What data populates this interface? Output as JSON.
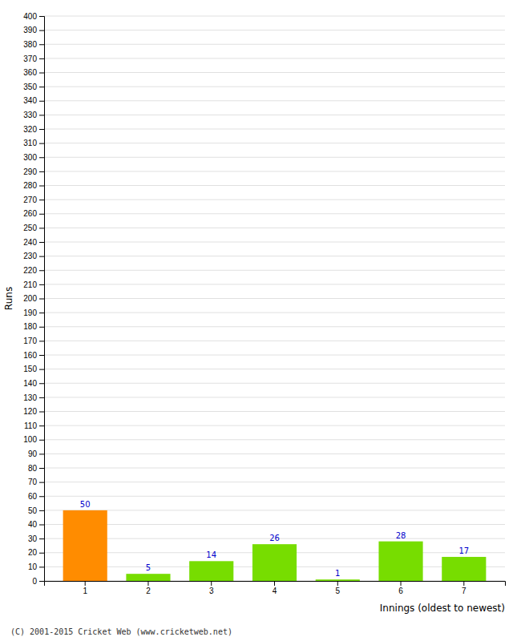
{
  "chart_data": {
    "type": "bar",
    "categories": [
      "1",
      "2",
      "3",
      "4",
      "5",
      "6",
      "7"
    ],
    "values": [
      50,
      5,
      14,
      26,
      1,
      28,
      17
    ],
    "colors": [
      "#FF8C00",
      "#77DD00",
      "#77DD00",
      "#77DD00",
      "#77DD00",
      "#77DD00",
      "#77DD00"
    ],
    "xlabel": "Innings (oldest to newest)",
    "ylabel": "Runs",
    "ylim": [
      0,
      400
    ],
    "yticks": [
      0,
      10,
      20,
      30,
      40,
      50,
      60,
      70,
      80,
      90,
      100,
      110,
      120,
      130,
      140,
      150,
      160,
      170,
      180,
      190,
      200,
      210,
      220,
      230,
      240,
      250,
      260,
      270,
      280,
      290,
      300,
      310,
      320,
      330,
      340,
      350,
      360,
      370,
      380,
      390,
      400
    ],
    "grid": true,
    "data_labels": true,
    "annotations": [
      "(C) 2001-2015 Cricket Web (www.cricketweb.net)"
    ]
  }
}
